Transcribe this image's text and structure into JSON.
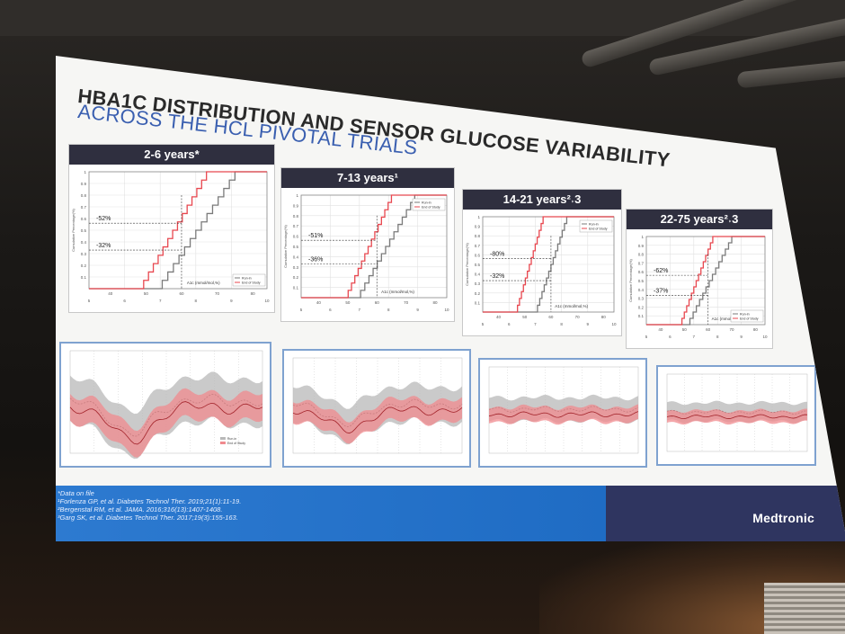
{
  "slide": {
    "title_line1": "HBA1C DISTRIBUTION AND SENSOR GLUCOSE VARIABILITY",
    "title_line2": "ACROSS THE HCL PIVOTAL TRIALS"
  },
  "panels": [
    {
      "header": "2-6 years*",
      "annot_top": "-52%",
      "annot_bottom": "-32%",
      "xlabel": "A1c (mmol/mol,%)"
    },
    {
      "header": "7-13 years¹",
      "annot_top": "-51%",
      "annot_bottom": "-36%",
      "xlabel": "A1c (mmol/mol,%)"
    },
    {
      "header": "14-21 years²˒3",
      "annot_top": "-80%",
      "annot_bottom": "-32%",
      "xlabel": "A1c (mmol/mol,%)"
    },
    {
      "header": "22-75 years²˒3",
      "annot_top": "-62%",
      "annot_bottom": "-37%",
      "xlabel": "A1c (mmol/mol,%)"
    }
  ],
  "legend": {
    "run_in": "Run-in",
    "end_of_study": "End of Study"
  },
  "ylabel": "Cumulative Percentage(%)",
  "x_ticks_top": [
    "40",
    "50",
    "60",
    "70",
    "80"
  ],
  "x_ticks_bottom": [
    "5",
    "6",
    "7",
    "8",
    "9",
    "10"
  ],
  "y_ticks": [
    "0.1",
    "0.2",
    "0.3",
    "0.4",
    "0.5",
    "0.6",
    "0.7",
    "0.8",
    "0.9",
    "1"
  ],
  "references": [
    "*Data on file",
    "¹Forlenza GP, et al. Diabetes Technol Ther. 2019;21(1):11-19.",
    "²Bergenstal RM, et al. JAMA. 2016;316(13):1407-1408.",
    "³Garg SK, et al. Diabetes Technol Ther. 2017;19(3):155-163."
  ],
  "brand": "Medtronic",
  "colors": {
    "run_in": "#7a7a7a",
    "end_of_study": "#e8474f",
    "header": "#2f2f3f",
    "accent_blue": "#2d7ad0"
  }
}
